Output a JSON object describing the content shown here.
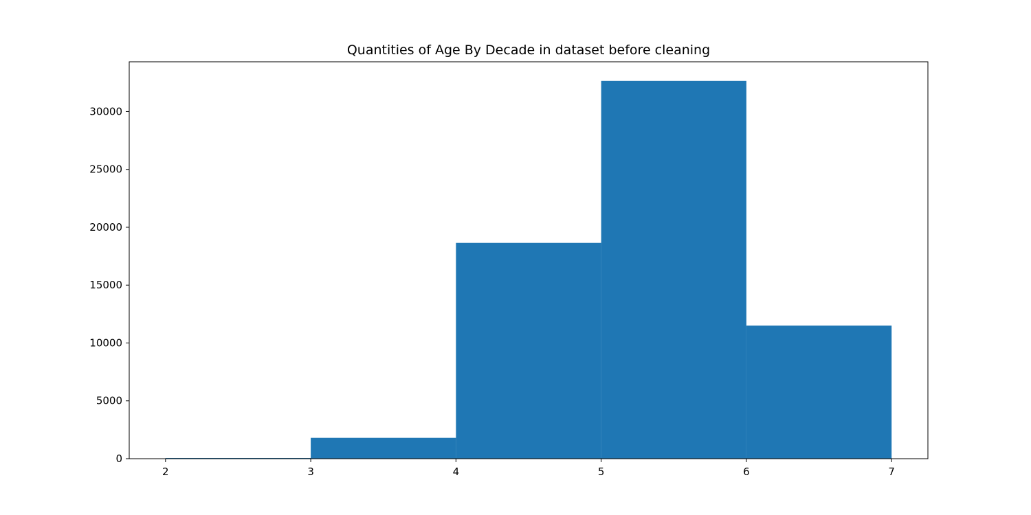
{
  "chart_data": {
    "type": "bar",
    "title": "Quantities of Age By Decade in dataset before cleaning",
    "xlabel": "",
    "ylabel": "",
    "bins": [
      {
        "start": 2,
        "end": 3,
        "value": 60
      },
      {
        "start": 3,
        "end": 4,
        "value": 1800
      },
      {
        "start": 4,
        "end": 5,
        "value": 18650
      },
      {
        "start": 5,
        "end": 6,
        "value": 32650
      },
      {
        "start": 6,
        "end": 7,
        "value": 11500
      }
    ],
    "xlim": [
      1.75,
      7.25
    ],
    "ylim": [
      0,
      34300
    ],
    "xticks": [
      2,
      3,
      4,
      5,
      6,
      7
    ],
    "yticks": [
      0,
      5000,
      10000,
      15000,
      20000,
      25000,
      30000
    ],
    "bar_color": "#1f77b4",
    "grid": false
  }
}
